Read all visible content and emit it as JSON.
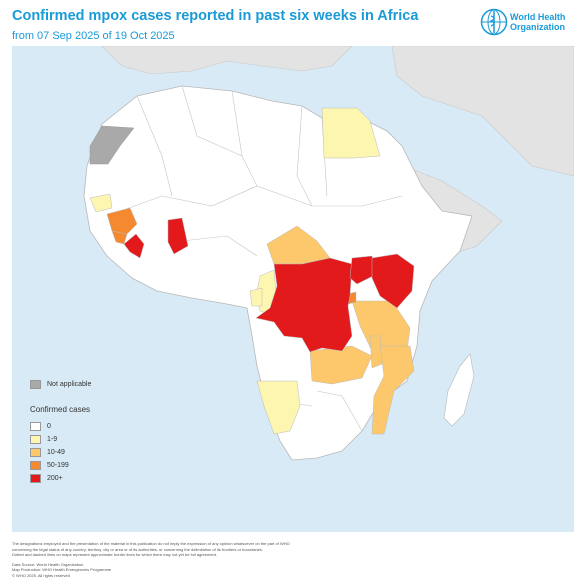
{
  "header": {
    "title": "Confirmed mpox cases reported in past six weeks in Africa",
    "subtitle": "from 07 Sep 2025 of 19 Oct 2025"
  },
  "logo": {
    "text_line1": "World Health",
    "text_line2": "Organization",
    "icon": "who-emblem-icon"
  },
  "legend": {
    "not_applicable_label": "Not applicable",
    "title": "Confirmed cases",
    "classes": [
      {
        "label": "0",
        "color": "#ffffff"
      },
      {
        "label": "1-9",
        "color": "#fdf6b0"
      },
      {
        "label": "10-49",
        "color": "#fdc86b"
      },
      {
        "label": "50-199",
        "color": "#f5892f"
      },
      {
        "label": "200+",
        "color": "#e31a1c"
      }
    ],
    "not_applicable_color": "#a9a9a9"
  },
  "colors": {
    "ocean": "#d8eaf5",
    "land_outside": "#e3e3e3",
    "land_no_cases": "#ffffff",
    "border": "#b8b8b8"
  },
  "map_regions": [
    {
      "name": "Egypt",
      "class": "1-9"
    },
    {
      "name": "Western Sahara",
      "class": "Not applicable"
    },
    {
      "name": "Guinea",
      "class": "50-199"
    },
    {
      "name": "Sierra Leone",
      "class": "50-199"
    },
    {
      "name": "Liberia",
      "class": "200+"
    },
    {
      "name": "Ghana",
      "class": "200+"
    },
    {
      "name": "Senegal",
      "class": "1-9"
    },
    {
      "name": "Central African Republic",
      "class": "10-49"
    },
    {
      "name": "Congo",
      "class": "1-9"
    },
    {
      "name": "Democratic Republic of the Congo",
      "class": "200+"
    },
    {
      "name": "Uganda",
      "class": "200+"
    },
    {
      "name": "Kenya",
      "class": "200+"
    },
    {
      "name": "Tanzania",
      "class": "10-49"
    },
    {
      "name": "Zambia",
      "class": "10-49"
    },
    {
      "name": "Malawi",
      "class": "10-49"
    },
    {
      "name": "Mozambique",
      "class": "10-49"
    },
    {
      "name": "Burundi",
      "class": "50-199"
    },
    {
      "name": "Namibia",
      "class": "1-9"
    },
    {
      "name": "Gabon",
      "class": "1-9"
    }
  ],
  "footer": {
    "disclaimer1": "The designations employed and the presentation of the material in this publication do not imply the expression of any opinion whatsoever on the part of WHO",
    "disclaimer2": "concerning the legal status of any country, territory, city or area or of its authorities, or concerning the delimitation of its frontiers or boundaries.",
    "disclaimer3": "Dotted and dashed lines on maps represent approximate border lines for which there may not yet be full agreement.",
    "source": "Data Source: World Health Organization",
    "production": "Map Production: WHO Health Emergencies Programme",
    "copyright": "© WHO 2025. All rights reserved"
  }
}
